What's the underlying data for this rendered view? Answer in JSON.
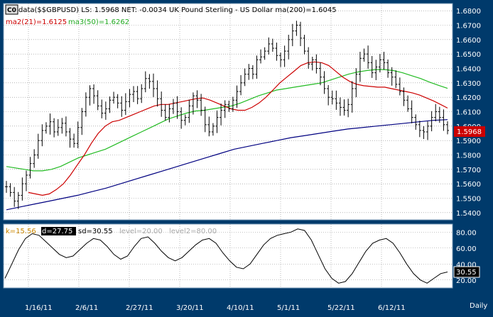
{
  "colors": {
    "frame": "#003a6b",
    "panel": "#ffffff",
    "grid": "#8a8a8a",
    "price": "#000000",
    "ma2": "#cc0000",
    "ma3": "#22bb22",
    "ma200": "#000080",
    "last_badge": "#cc0000",
    "axis_text": "#ffffff"
  },
  "legend": {
    "symbol_badge": "C0",
    "main": "data($$GBPUSD) LS: 1.5968   NET: -0.0034   UK Pound Sterling - US Dollar ma(200)=1.6045",
    "ma2": "ma2(21)=1.6125",
    "ma3": "ma3(50)=1.6262",
    "stoch_k": "k=15.56",
    "stoch_d": "d=27.75",
    "stoch_sd": "sd=30.55",
    "level1": "level=20.00",
    "level2": "level2=80.00"
  },
  "last_price_label": "1.5968",
  "stoch_last_label": "30.55",
  "period_label": "Daily",
  "chart_data": [
    {
      "type": "ohlc",
      "name": "price",
      "ylim": [
        1.535,
        1.685
      ],
      "yticks": [
        "1.6800",
        "1.6700",
        "1.6600",
        "1.6500",
        "1.6400",
        "1.6300",
        "1.6200",
        "1.6100",
        "1.6000",
        "1.5900",
        "1.5800",
        "1.5700",
        "1.5600",
        "1.5500",
        "1.5400"
      ],
      "xticks": [
        "1/16/11",
        "2/6/11",
        "2/27/11",
        "3/20/11",
        "4/10/11",
        "5/1/11",
        "5/22/11",
        "6/12/11"
      ],
      "close_path": [
        1.558,
        1.554,
        1.548,
        1.552,
        1.56,
        1.566,
        1.574,
        1.58,
        1.59,
        1.597,
        1.6,
        1.603,
        1.596,
        1.599,
        1.602,
        1.596,
        1.591,
        1.588,
        1.599,
        1.61,
        1.62,
        1.626,
        1.621,
        1.614,
        1.609,
        1.612,
        1.618,
        1.62,
        1.616,
        1.611,
        1.617,
        1.622,
        1.624,
        1.619,
        1.626,
        1.633,
        1.631,
        1.626,
        1.619,
        1.611,
        1.606,
        1.612,
        1.616,
        1.61,
        1.604,
        1.606,
        1.614,
        1.621,
        1.618,
        1.611,
        1.601,
        1.596,
        1.6,
        1.606,
        1.611,
        1.615,
        1.612,
        1.618,
        1.624,
        1.63,
        1.636,
        1.64,
        1.636,
        1.646,
        1.648,
        1.652,
        1.657,
        1.654,
        1.649,
        1.646,
        1.652,
        1.66,
        1.666,
        1.67,
        1.661,
        1.652,
        1.643,
        1.646,
        1.64,
        1.634,
        1.626,
        1.62,
        1.619,
        1.616,
        1.613,
        1.611,
        1.615,
        1.626,
        1.636,
        1.647,
        1.65,
        1.644,
        1.637,
        1.641,
        1.646,
        1.644,
        1.637,
        1.634,
        1.629,
        1.624,
        1.618,
        1.612,
        1.606,
        1.601,
        1.597,
        1.596,
        1.6,
        1.606,
        1.61,
        1.606,
        1.601,
        1.597
      ],
      "ma2_path": [
        1.554,
        1.553,
        1.552,
        1.553,
        1.556,
        1.56,
        1.566,
        1.573,
        1.58,
        1.588,
        1.595,
        1.6,
        1.603,
        1.604,
        1.606,
        1.608,
        1.61,
        1.612,
        1.614,
        1.615,
        1.615,
        1.616,
        1.617,
        1.618,
        1.619,
        1.6195,
        1.618,
        1.616,
        1.614,
        1.612,
        1.611,
        1.611,
        1.613,
        1.616,
        1.62,
        1.625,
        1.63,
        1.634,
        1.638,
        1.642,
        1.644,
        1.6445,
        1.644,
        1.642,
        1.638,
        1.634,
        1.631,
        1.629,
        1.628,
        1.6275,
        1.627,
        1.627,
        1.626,
        1.625,
        1.624,
        1.623,
        1.6215,
        1.6195,
        1.6175,
        1.615,
        1.6125
      ],
      "ma3_path": [
        1.572,
        1.571,
        1.57,
        1.569,
        1.569,
        1.57,
        1.572,
        1.575,
        1.578,
        1.58,
        1.582,
        1.584,
        1.587,
        1.59,
        1.593,
        1.596,
        1.599,
        1.602,
        1.605,
        1.607,
        1.609,
        1.6105,
        1.611,
        1.612,
        1.613,
        1.614,
        1.616,
        1.6185,
        1.621,
        1.623,
        1.625,
        1.626,
        1.627,
        1.628,
        1.629,
        1.63,
        1.632,
        1.634,
        1.636,
        1.6375,
        1.6385,
        1.6392,
        1.6392,
        1.6385,
        1.637,
        1.635,
        1.633,
        1.6305,
        1.6283,
        1.6262
      ],
      "ma200_path": [
        1.542,
        1.544,
        1.546,
        1.548,
        1.55,
        1.552,
        1.5545,
        1.557,
        1.56,
        1.563,
        1.566,
        1.569,
        1.572,
        1.575,
        1.578,
        1.581,
        1.584,
        1.586,
        1.588,
        1.59,
        1.592,
        1.5935,
        1.595,
        1.5965,
        1.598,
        1.599,
        1.6,
        1.601,
        1.602,
        1.603,
        1.604,
        1.6045
      ],
      "last": 1.5968
    },
    {
      "type": "line",
      "name": "stochastic",
      "ylim": [
        10,
        90
      ],
      "yticks": [
        "80.00",
        "60.00",
        "40.00",
        "20.00"
      ],
      "levels": [
        20,
        80
      ],
      "values": [
        22,
        40,
        58,
        72,
        78,
        76,
        68,
        60,
        52,
        48,
        50,
        58,
        66,
        72,
        70,
        62,
        52,
        46,
        50,
        62,
        72,
        74,
        66,
        56,
        48,
        44,
        48,
        56,
        64,
        70,
        72,
        66,
        54,
        44,
        36,
        34,
        40,
        52,
        64,
        72,
        76,
        78,
        80,
        84,
        82,
        70,
        52,
        34,
        22,
        16,
        18,
        28,
        42,
        56,
        66,
        70,
        72,
        66,
        54,
        40,
        28,
        20,
        16,
        22,
        28,
        30
      ]
    }
  ]
}
